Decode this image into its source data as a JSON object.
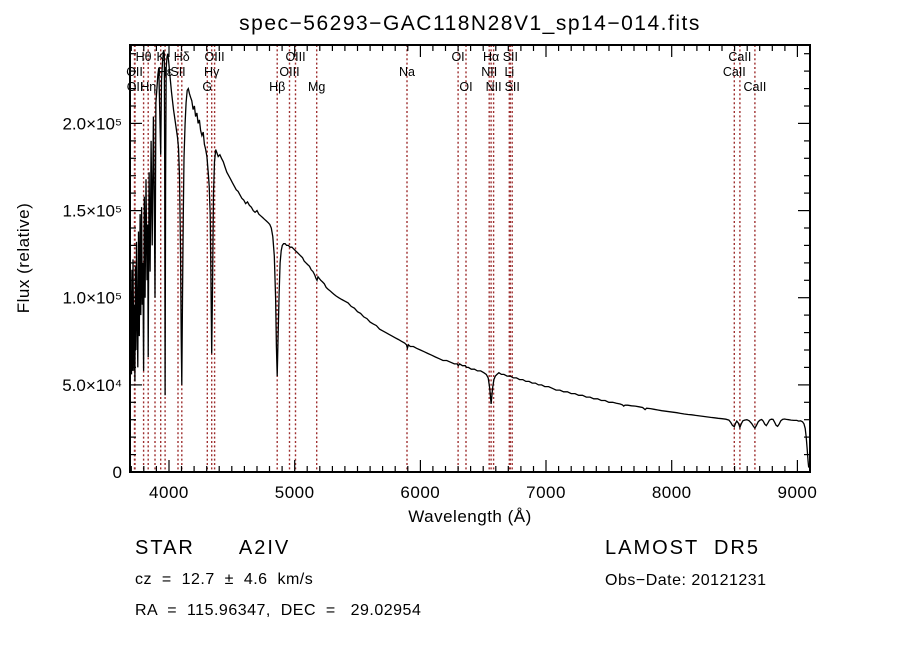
{
  "title": "spec−56293−GAC118N28V1_sp14−014.fits",
  "footer": {
    "left": {
      "class": "STAR",
      "subclass": "A2IV",
      "cz": "cz  =  12.7  ±  4.6  km/s",
      "radec": "RA  =  115.96347,  DEC  =   29.02954"
    },
    "right": {
      "survey": "LAMOST  DR5",
      "obs_date": "Obs−Date: 20121231"
    }
  },
  "chart_data": {
    "type": "line",
    "title": "spec−56293−GAC118N28V1_sp14−014.fits",
    "xlabel": "Wavelength (Å)",
    "ylabel": "Flux (relative)",
    "xlim": [
      3690,
      9100
    ],
    "ylim": [
      0,
      245000
    ],
    "grid": false,
    "legend": "none",
    "colors": {
      "spectrum": "#000000",
      "spectral_lines": "#9e2f2f",
      "axes": "#000000"
    },
    "xticks": [
      {
        "value": 4000,
        "label": "4000"
      },
      {
        "value": 5000,
        "label": "5000"
      },
      {
        "value": 6000,
        "label": "6000"
      },
      {
        "value": 7000,
        "label": "7000"
      },
      {
        "value": 8000,
        "label": "8000"
      },
      {
        "value": 9000,
        "label": "9000"
      }
    ],
    "yticks": [
      {
        "value": 0,
        "label": "0"
      },
      {
        "value": 50000,
        "label": "5.0×10⁴"
      },
      {
        "value": 100000,
        "label": "1.0×10⁵"
      },
      {
        "value": 150000,
        "label": "1.5×10⁵"
      },
      {
        "value": 200000,
        "label": "2.0×10⁵"
      }
    ],
    "x_minor_step": 100,
    "y_minor_step": 10000,
    "spectral_lines": [
      {
        "label": "OII",
        "wavelength": 3726,
        "row": 2
      },
      {
        "label": "OII",
        "wavelength": 3730,
        "row": 3
      },
      {
        "label": "Hθ",
        "wavelength": 3798,
        "row": 1
      },
      {
        "label": "Hη",
        "wavelength": 3835,
        "row": 3
      },
      {
        "label": "",
        "wavelength": 3889,
        "row": 1
      },
      {
        "label": "K",
        "wavelength": 3934,
        "row": 1
      },
      {
        "label": "Hε",
        "wavelength": 3969,
        "row": 2
      },
      {
        "label": "SII",
        "wavelength": 4072,
        "row": 2
      },
      {
        "label": "Hδ",
        "wavelength": 4102,
        "row": 1
      },
      {
        "label": "G",
        "wavelength": 4305,
        "row": 3
      },
      {
        "label": "Hγ",
        "wavelength": 4340,
        "row": 2
      },
      {
        "label": "OIII",
        "wavelength": 4363,
        "row": 1
      },
      {
        "label": "Hβ",
        "wavelength": 4861,
        "row": 3
      },
      {
        "label": "OIII",
        "wavelength": 4959,
        "row": 2
      },
      {
        "label": "OIII",
        "wavelength": 5007,
        "row": 1
      },
      {
        "label": "Mg",
        "wavelength": 5175,
        "row": 3
      },
      {
        "label": "Na",
        "wavelength": 5894,
        "row": 2
      },
      {
        "label": "OI",
        "wavelength": 6300,
        "row": 1
      },
      {
        "label": "OI",
        "wavelength": 6363,
        "row": 3
      },
      {
        "label": "NII",
        "wavelength": 6548,
        "row": 2
      },
      {
        "label": "Hα",
        "wavelength": 6563,
        "row": 1
      },
      {
        "label": "NII",
        "wavelength": 6583,
        "row": 3
      },
      {
        "label": "Li",
        "wavelength": 6708,
        "row": 2
      },
      {
        "label": "SII",
        "wavelength": 6716,
        "row": 1
      },
      {
        "label": "SII",
        "wavelength": 6731,
        "row": 3
      },
      {
        "label": "CaII",
        "wavelength": 8498,
        "row": 2
      },
      {
        "label": "CaII",
        "wavelength": 8542,
        "row": 1
      },
      {
        "label": "CaII",
        "wavelength": 8662,
        "row": 3
      }
    ],
    "spectrum": [
      [
        3691,
        82000
      ],
      [
        3693,
        112000
      ],
      [
        3696,
        64000
      ],
      [
        3699,
        104000
      ],
      [
        3702,
        56000
      ],
      [
        3705,
        116000
      ],
      [
        3708,
        70000
      ],
      [
        3711,
        58000
      ],
      [
        3714,
        122000
      ],
      [
        3718,
        86000
      ],
      [
        3722,
        58000
      ],
      [
        3726,
        96000
      ],
      [
        3729,
        52000
      ],
      [
        3733,
        118000
      ],
      [
        3737,
        70000
      ],
      [
        3742,
        132000
      ],
      [
        3747,
        86000
      ],
      [
        3752,
        60000
      ],
      [
        3758,
        138000
      ],
      [
        3764,
        78000
      ],
      [
        3770,
        148000
      ],
      [
        3776,
        90000
      ],
      [
        3782,
        152000
      ],
      [
        3788,
        96000
      ],
      [
        3793,
        120000
      ],
      [
        3798,
        58000
      ],
      [
        3804,
        158000
      ],
      [
        3810,
        100000
      ],
      [
        3817,
        168000
      ],
      [
        3825,
        110000
      ],
      [
        3831,
        142000
      ],
      [
        3835,
        66000
      ],
      [
        3842,
        172000
      ],
      [
        3850,
        115000
      ],
      [
        3858,
        190000
      ],
      [
        3867,
        130000
      ],
      [
        3876,
        204000
      ],
      [
        3883,
        155000
      ],
      [
        3889,
        100000
      ],
      [
        3896,
        212000
      ],
      [
        3904,
        220000
      ],
      [
        3912,
        228000
      ],
      [
        3919,
        232000
      ],
      [
        3926,
        208000
      ],
      [
        3934,
        182000
      ],
      [
        3941,
        225000
      ],
      [
        3949,
        236000
      ],
      [
        3957,
        242000
      ],
      [
        3963,
        240000
      ],
      [
        3966,
        175000
      ],
      [
        3969,
        44000
      ],
      [
        3973,
        168000
      ],
      [
        3978,
        232000
      ],
      [
        3984,
        238000
      ],
      [
        3990,
        240000
      ],
      [
        3997,
        236000
      ],
      [
        4004,
        230000
      ],
      [
        4012,
        224000
      ],
      [
        4020,
        218000
      ],
      [
        4028,
        213000
      ],
      [
        4036,
        208000
      ],
      [
        4044,
        204000
      ],
      [
        4052,
        200000
      ],
      [
        4060,
        196000
      ],
      [
        4068,
        192000
      ],
      [
        4076,
        186000
      ],
      [
        4084,
        170000
      ],
      [
        4092,
        128000
      ],
      [
        4097,
        78000
      ],
      [
        4102,
        50000
      ],
      [
        4108,
        100000
      ],
      [
        4114,
        148000
      ],
      [
        4120,
        180000
      ],
      [
        4128,
        200000
      ],
      [
        4136,
        212000
      ],
      [
        4145,
        219000
      ],
      [
        4154,
        220000
      ],
      [
        4163,
        217000
      ],
      [
        4172,
        215000
      ],
      [
        4182,
        213000
      ],
      [
        4192,
        208000
      ],
      [
        4202,
        210000
      ],
      [
        4212,
        204000
      ],
      [
        4222,
        206000
      ],
      [
        4232,
        200000
      ],
      [
        4242,
        202000
      ],
      [
        4252,
        196000
      ],
      [
        4262,
        193000
      ],
      [
        4272,
        195000
      ],
      [
        4282,
        188000
      ],
      [
        4292,
        185000
      ],
      [
        4302,
        181000
      ],
      [
        4312,
        172000
      ],
      [
        4320,
        164000
      ],
      [
        4328,
        148000
      ],
      [
        4334,
        112000
      ],
      [
        4340,
        68000
      ],
      [
        4347,
        110000
      ],
      [
        4354,
        160000
      ],
      [
        4362,
        178000
      ],
      [
        4372,
        185000
      ],
      [
        4382,
        183000
      ],
      [
        4392,
        181000
      ],
      [
        4405,
        182000
      ],
      [
        4418,
        180000
      ],
      [
        4432,
        178000
      ],
      [
        4446,
        175000
      ],
      [
        4460,
        172000
      ],
      [
        4475,
        170000
      ],
      [
        4490,
        168000
      ],
      [
        4505,
        166000
      ],
      [
        4520,
        164000
      ],
      [
        4535,
        162000
      ],
      [
        4550,
        161000
      ],
      [
        4565,
        159000
      ],
      [
        4580,
        157000
      ],
      [
        4595,
        156000
      ],
      [
        4610,
        154000
      ],
      [
        4625,
        155000
      ],
      [
        4640,
        153000
      ],
      [
        4655,
        152000
      ],
      [
        4670,
        150000
      ],
      [
        4685,
        149000
      ],
      [
        4700,
        150000
      ],
      [
        4715,
        148000
      ],
      [
        4730,
        147000
      ],
      [
        4745,
        146000
      ],
      [
        4760,
        145000
      ],
      [
        4775,
        144000
      ],
      [
        4790,
        143000
      ],
      [
        4802,
        142000
      ],
      [
        4814,
        140000
      ],
      [
        4826,
        135000
      ],
      [
        4838,
        124000
      ],
      [
        4848,
        100000
      ],
      [
        4855,
        72000
      ],
      [
        4861,
        55000
      ],
      [
        4868,
        78000
      ],
      [
        4876,
        102000
      ],
      [
        4884,
        120000
      ],
      [
        4893,
        127000
      ],
      [
        4902,
        130000
      ],
      [
        4912,
        131000
      ],
      [
        4924,
        131000
      ],
      [
        4936,
        130000
      ],
      [
        4950,
        130000
      ],
      [
        4964,
        129000
      ],
      [
        4978,
        129000
      ],
      [
        4992,
        128000
      ],
      [
        5006,
        127000
      ],
      [
        5020,
        126000
      ],
      [
        5034,
        125000
      ],
      [
        5048,
        124000
      ],
      [
        5062,
        123000
      ],
      [
        5076,
        121000
      ],
      [
        5090,
        120000
      ],
      [
        5104,
        119000
      ],
      [
        5118,
        118000
      ],
      [
        5132,
        116000
      ],
      [
        5146,
        115000
      ],
      [
        5160,
        113000
      ],
      [
        5170,
        111000
      ],
      [
        5178,
        110000
      ],
      [
        5186,
        112000
      ],
      [
        5196,
        111000
      ],
      [
        5208,
        110000
      ],
      [
        5222,
        109000
      ],
      [
        5236,
        108000
      ],
      [
        5250,
        106000
      ],
      [
        5264,
        105000
      ],
      [
        5280,
        104000
      ],
      [
        5296,
        103000
      ],
      [
        5312,
        102000
      ],
      [
        5330,
        101000
      ],
      [
        5350,
        100000
      ],
      [
        5375,
        99000
      ],
      [
        5400,
        98000
      ],
      [
        5425,
        97000
      ],
      [
        5450,
        95000
      ],
      [
        5475,
        94000
      ],
      [
        5500,
        92000
      ],
      [
        5525,
        91000
      ],
      [
        5550,
        89000
      ],
      [
        5575,
        88000
      ],
      [
        5600,
        86000
      ],
      [
        5625,
        85000
      ],
      [
        5650,
        84000
      ],
      [
        5675,
        82000
      ],
      [
        5700,
        81000
      ],
      [
        5725,
        80000
      ],
      [
        5750,
        79000
      ],
      [
        5775,
        78000
      ],
      [
        5800,
        77000
      ],
      [
        5825,
        76000
      ],
      [
        5850,
        75000
      ],
      [
        5875,
        74000
      ],
      [
        5890,
        73000
      ],
      [
        5897,
        71000
      ],
      [
        5905,
        73000
      ],
      [
        5920,
        72000
      ],
      [
        5945,
        72000
      ],
      [
        5970,
        71000
      ],
      [
        6000,
        70000
      ],
      [
        6030,
        69000
      ],
      [
        6060,
        68000
      ],
      [
        6090,
        67000
      ],
      [
        6120,
        66000
      ],
      [
        6150,
        65000
      ],
      [
        6180,
        64000
      ],
      [
        6210,
        64000
      ],
      [
        6240,
        63000
      ],
      [
        6270,
        62000
      ],
      [
        6292,
        62000
      ],
      [
        6302,
        61000
      ],
      [
        6312,
        62000
      ],
      [
        6335,
        61000
      ],
      [
        6358,
        61000
      ],
      [
        6368,
        60000
      ],
      [
        6382,
        60000
      ],
      [
        6405,
        59000
      ],
      [
        6430,
        59000
      ],
      [
        6455,
        58000
      ],
      [
        6480,
        58000
      ],
      [
        6505,
        57000
      ],
      [
        6525,
        56000
      ],
      [
        6540,
        54000
      ],
      [
        6552,
        48000
      ],
      [
        6558,
        43000
      ],
      [
        6563,
        39000
      ],
      [
        6569,
        44000
      ],
      [
        6576,
        49000
      ],
      [
        6585,
        53000
      ],
      [
        6596,
        55000
      ],
      [
        6610,
        56000
      ],
      [
        6625,
        57000
      ],
      [
        6645,
        56000
      ],
      [
        6665,
        56000
      ],
      [
        6690,
        55000
      ],
      [
        6715,
        55000
      ],
      [
        6740,
        54000
      ],
      [
        6765,
        54000
      ],
      [
        6790,
        53000
      ],
      [
        6815,
        53000
      ],
      [
        6840,
        52000
      ],
      [
        6865,
        52000
      ],
      [
        6890,
        51000
      ],
      [
        6915,
        51000
      ],
      [
        6940,
        50000
      ],
      [
        6965,
        50000
      ],
      [
        6990,
        49000
      ],
      [
        7020,
        49000
      ],
      [
        7050,
        48000
      ],
      [
        7080,
        47000
      ],
      [
        7110,
        47000
      ],
      [
        7140,
        46000
      ],
      [
        7170,
        46000
      ],
      [
        7200,
        45000
      ],
      [
        7230,
        45000
      ],
      [
        7260,
        44000
      ],
      [
        7290,
        44000
      ],
      [
        7320,
        43000
      ],
      [
        7350,
        43000
      ],
      [
        7380,
        42000
      ],
      [
        7410,
        42000
      ],
      [
        7440,
        41000
      ],
      [
        7470,
        41000
      ],
      [
        7500,
        40000
      ],
      [
        7530,
        40000
      ],
      [
        7560,
        39500
      ],
      [
        7590,
        39000
      ],
      [
        7608,
        38500
      ],
      [
        7618,
        37800
      ],
      [
        7628,
        38400
      ],
      [
        7650,
        38300
      ],
      [
        7680,
        38000
      ],
      [
        7710,
        37800
      ],
      [
        7740,
        37400
      ],
      [
        7768,
        37000
      ],
      [
        7788,
        35800
      ],
      [
        7800,
        36600
      ],
      [
        7830,
        36400
      ],
      [
        7860,
        36000
      ],
      [
        7890,
        35600
      ],
      [
        7920,
        35200
      ],
      [
        7950,
        34900
      ],
      [
        7980,
        34600
      ],
      [
        8010,
        34300
      ],
      [
        8040,
        34000
      ],
      [
        8070,
        33600
      ],
      [
        8100,
        33300
      ],
      [
        8130,
        33000
      ],
      [
        8160,
        32800
      ],
      [
        8190,
        32500
      ],
      [
        8220,
        32200
      ],
      [
        8250,
        31900
      ],
      [
        8280,
        31600
      ],
      [
        8310,
        31300
      ],
      [
        8340,
        31100
      ],
      [
        8370,
        30800
      ],
      [
        8400,
        30600
      ],
      [
        8430,
        30300
      ],
      [
        8455,
        29800
      ],
      [
        8470,
        28400
      ],
      [
        8483,
        26800
      ],
      [
        8498,
        26000
      ],
      [
        8508,
        28000
      ],
      [
        8518,
        29200
      ],
      [
        8530,
        28000
      ],
      [
        8542,
        25600
      ],
      [
        8554,
        27800
      ],
      [
        8566,
        29400
      ],
      [
        8580,
        29800
      ],
      [
        8598,
        30000
      ],
      [
        8616,
        29400
      ],
      [
        8636,
        27800
      ],
      [
        8650,
        26200
      ],
      [
        8662,
        25200
      ],
      [
        8674,
        26800
      ],
      [
        8688,
        28800
      ],
      [
        8702,
        29800
      ],
      [
        8716,
        30100
      ],
      [
        8728,
        29200
      ],
      [
        8740,
        27400
      ],
      [
        8752,
        26600
      ],
      [
        8764,
        28000
      ],
      [
        8778,
        29800
      ],
      [
        8792,
        30300
      ],
      [
        8806,
        30200
      ],
      [
        8818,
        28600
      ],
      [
        8830,
        26800
      ],
      [
        8842,
        26200
      ],
      [
        8854,
        27400
      ],
      [
        8868,
        29400
      ],
      [
        8882,
        30200
      ],
      [
        8896,
        30400
      ],
      [
        8912,
        30200
      ],
      [
        8930,
        30000
      ],
      [
        8950,
        29800
      ],
      [
        8972,
        29600
      ],
      [
        8995,
        29600
      ],
      [
        9010,
        29200
      ],
      [
        9025,
        29400
      ],
      [
        9040,
        28800
      ],
      [
        9052,
        27600
      ],
      [
        9062,
        25000
      ],
      [
        9070,
        20000
      ],
      [
        9078,
        13000
      ],
      [
        9085,
        6000
      ],
      [
        9090,
        2500
      ]
    ]
  }
}
